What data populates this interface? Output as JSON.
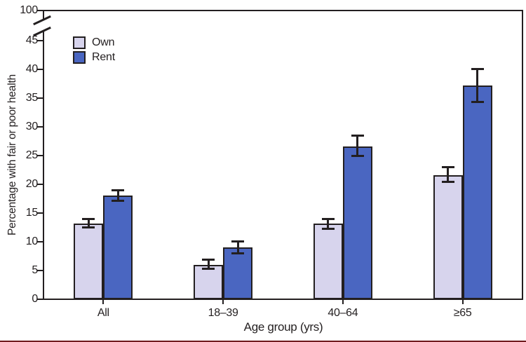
{
  "chart_data": {
    "type": "bar",
    "title": "",
    "categories": [
      "All",
      "18–39",
      "40–64",
      "≥65"
    ],
    "series": [
      {
        "name": "Own",
        "color": "#d7d4ed",
        "values": [
          13.2,
          6.0,
          13.2,
          21.6
        ],
        "ci_low": [
          12.5,
          5.3,
          12.3,
          20.4
        ],
        "ci_high": [
          13.9,
          6.9,
          14.0,
          22.9
        ]
      },
      {
        "name": "Rent",
        "color": "#4a66c1",
        "values": [
          18.0,
          9.0,
          26.6,
          37.1
        ],
        "ci_low": [
          17.1,
          8.0,
          24.9,
          34.3
        ],
        "ci_high": [
          19.0,
          10.0,
          28.5,
          40.0
        ]
      }
    ],
    "xlabel": "Age group (yrs)",
    "ylabel": "Percentage with fair or poor health",
    "ylim": [
      0,
      45
    ],
    "y_ticks": [
      0,
      5,
      10,
      15,
      20,
      25,
      30,
      35,
      40,
      45
    ],
    "y_axis_break_label": "100",
    "grid": false,
    "error_bars": true,
    "legend_position": "top-left",
    "axis_color": "#231f20",
    "bottom_rule_color": "#701b1e"
  }
}
